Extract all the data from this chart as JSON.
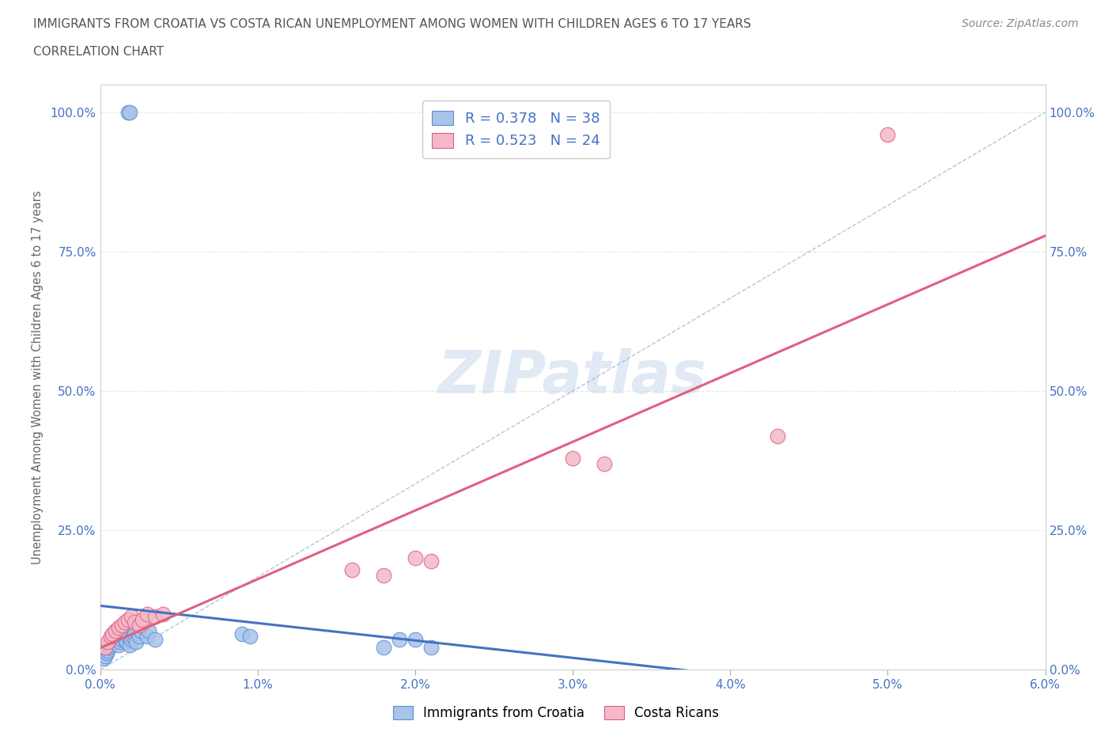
{
  "title_line1": "IMMIGRANTS FROM CROATIA VS COSTA RICAN UNEMPLOYMENT AMONG WOMEN WITH CHILDREN AGES 6 TO 17 YEARS",
  "title_line2": "CORRELATION CHART",
  "source_text": "Source: ZipAtlas.com",
  "ylabel": "Unemployment Among Women with Children Ages 6 to 17 years",
  "xlim": [
    0.0,
    0.06
  ],
  "ylim": [
    0.0,
    1.05
  ],
  "xtick_labels": [
    "0.0%",
    "1.0%",
    "2.0%",
    "3.0%",
    "4.0%",
    "5.0%",
    "6.0%"
  ],
  "xtick_vals": [
    0.0,
    0.01,
    0.02,
    0.03,
    0.04,
    0.05,
    0.06
  ],
  "ytick_labels": [
    "0.0%",
    "25.0%",
    "50.0%",
    "75.0%",
    "100.0%"
  ],
  "ytick_vals": [
    0.0,
    0.25,
    0.5,
    0.75,
    1.0
  ],
  "blue_scatter_color": "#a8c4e8",
  "blue_edge_color": "#5b8fd4",
  "pink_scatter_color": "#f4b8c8",
  "pink_edge_color": "#e06080",
  "blue_line_color": "#4472c4",
  "pink_line_color": "#e06080",
  "diag_line_color": "#a0b8d0",
  "R_blue": 0.378,
  "N_blue": 38,
  "R_pink": 0.523,
  "N_pink": 24,
  "blue_scatter_x": [
    0.0002,
    0.0003,
    0.0004,
    0.0005,
    0.0006,
    0.0007,
    0.0008,
    0.0008,
    0.0009,
    0.001,
    0.001,
    0.0012,
    0.0013,
    0.0014,
    0.0015,
    0.0015,
    0.0016,
    0.0017,
    0.0018,
    0.0018,
    0.0019,
    0.002,
    0.0021,
    0.0022,
    0.0023,
    0.0025,
    0.0026,
    0.003,
    0.0031,
    0.0035,
    0.0018,
    0.0019,
    0.009,
    0.0095,
    0.018,
    0.019,
    0.02,
    0.021
  ],
  "blue_scatter_y": [
    0.02,
    0.025,
    0.03,
    0.035,
    0.04,
    0.045,
    0.05,
    0.06,
    0.055,
    0.065,
    0.07,
    0.045,
    0.05,
    0.055,
    0.06,
    0.065,
    0.055,
    0.05,
    0.07,
    0.06,
    0.045,
    0.055,
    0.06,
    0.065,
    0.05,
    0.06,
    0.07,
    0.06,
    0.07,
    0.055,
    1.0,
    1.0,
    0.065,
    0.06,
    0.04,
    0.055,
    0.055,
    0.04
  ],
  "pink_scatter_x": [
    0.0003,
    0.0005,
    0.0007,
    0.0008,
    0.001,
    0.0012,
    0.0014,
    0.0016,
    0.0018,
    0.002,
    0.0022,
    0.0025,
    0.0027,
    0.003,
    0.0035,
    0.004,
    0.016,
    0.018,
    0.02,
    0.021,
    0.03,
    0.032,
    0.043,
    0.05
  ],
  "pink_scatter_y": [
    0.04,
    0.05,
    0.06,
    0.065,
    0.07,
    0.075,
    0.08,
    0.085,
    0.09,
    0.095,
    0.085,
    0.08,
    0.09,
    0.1,
    0.095,
    0.1,
    0.18,
    0.17,
    0.2,
    0.195,
    0.38,
    0.37,
    0.42,
    0.96
  ],
  "watermark_text": "ZIPatlas",
  "legend_label_blue": "Immigrants from Croatia",
  "legend_label_pink": "Costa Ricans",
  "background_color": "#ffffff",
  "grid_color": "#e8e8e8"
}
